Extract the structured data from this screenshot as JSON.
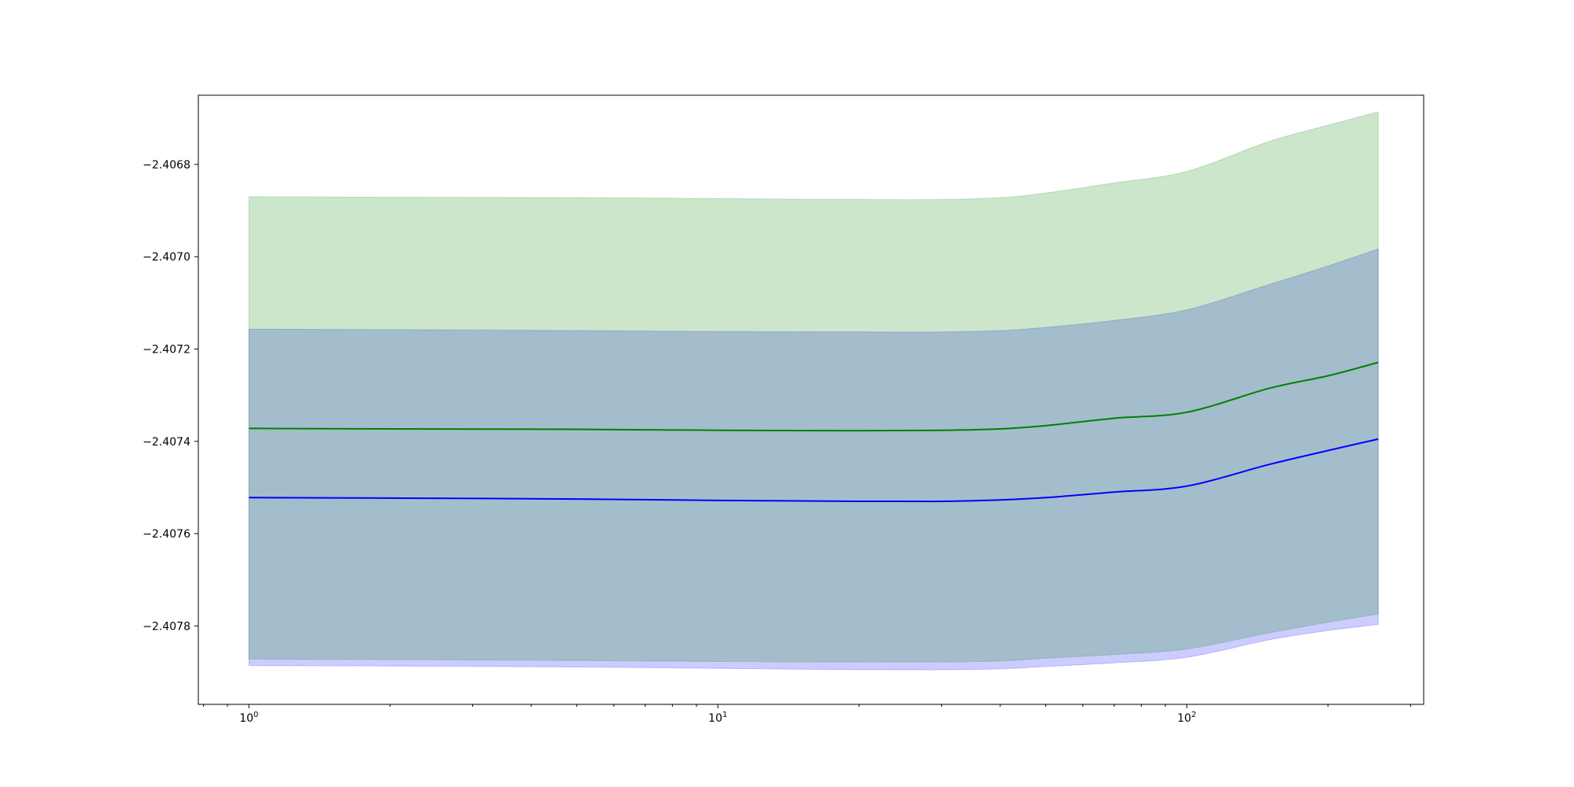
{
  "chart_data": {
    "type": "area",
    "title": "",
    "xlabel": "",
    "ylabel": "",
    "x_scale": "log",
    "xlim": [
      0.78,
      320
    ],
    "ylim": [
      -2.40797,
      -2.40665
    ],
    "grid": false,
    "x_ticks": [
      {
        "value": 1,
        "base": "10",
        "exp": "0"
      },
      {
        "value": 10,
        "base": "10",
        "exp": "1"
      },
      {
        "value": 100,
        "base": "10",
        "exp": "2"
      }
    ],
    "y_ticks": [
      {
        "value": -2.4068,
        "label": "−2.4068"
      },
      {
        "value": -2.407,
        "label": "−2.4070"
      },
      {
        "value": -2.4072,
        "label": "−2.4072"
      },
      {
        "value": -2.4074,
        "label": "−2.4074"
      },
      {
        "value": -2.4076,
        "label": "−2.4076"
      },
      {
        "value": -2.4078,
        "label": "−2.4078"
      }
    ],
    "x": [
      1,
      2,
      5,
      10,
      20,
      30,
      40,
      50,
      70,
      100,
      150,
      200,
      256
    ],
    "series": [
      {
        "color": "#0000ff",
        "band_color": "#0000ff",
        "band_opacity": 0.2,
        "mean": [
          -2.407522,
          -2.407523,
          -2.407525,
          -2.407528,
          -2.40753,
          -2.40753,
          -2.407527,
          -2.407522,
          -2.40751,
          -2.407497,
          -2.40745,
          -2.40742,
          -2.407395
        ],
        "lower": [
          -2.407886,
          -2.407887,
          -2.407889,
          -2.407892,
          -2.407895,
          -2.407895,
          -2.407893,
          -2.407888,
          -2.40788,
          -2.407868,
          -2.40783,
          -2.40781,
          -2.407797
        ],
        "upper": [
          -2.407157,
          -2.407158,
          -2.40716,
          -2.407162,
          -2.407163,
          -2.407163,
          -2.40716,
          -2.407153,
          -2.407138,
          -2.407115,
          -2.40706,
          -2.40702,
          -2.406983
        ]
      },
      {
        "color": "#008000",
        "band_color": "#008000",
        "band_opacity": 0.2,
        "mean": [
          -2.407372,
          -2.407373,
          -2.407374,
          -2.407376,
          -2.407377,
          -2.407376,
          -2.407373,
          -2.407366,
          -2.40735,
          -2.407337,
          -2.407285,
          -2.407258,
          -2.407229
        ],
        "lower": [
          -2.407872,
          -2.407873,
          -2.407875,
          -2.407877,
          -2.407878,
          -2.407878,
          -2.407876,
          -2.40787,
          -2.407862,
          -2.40785,
          -2.407815,
          -2.407792,
          -2.407774
        ],
        "upper": [
          -2.40687,
          -2.406871,
          -2.406872,
          -2.406874,
          -2.406876,
          -2.406876,
          -2.406872,
          -2.406862,
          -2.40684,
          -2.406815,
          -2.40675,
          -2.406715,
          -2.406686
        ]
      }
    ]
  }
}
